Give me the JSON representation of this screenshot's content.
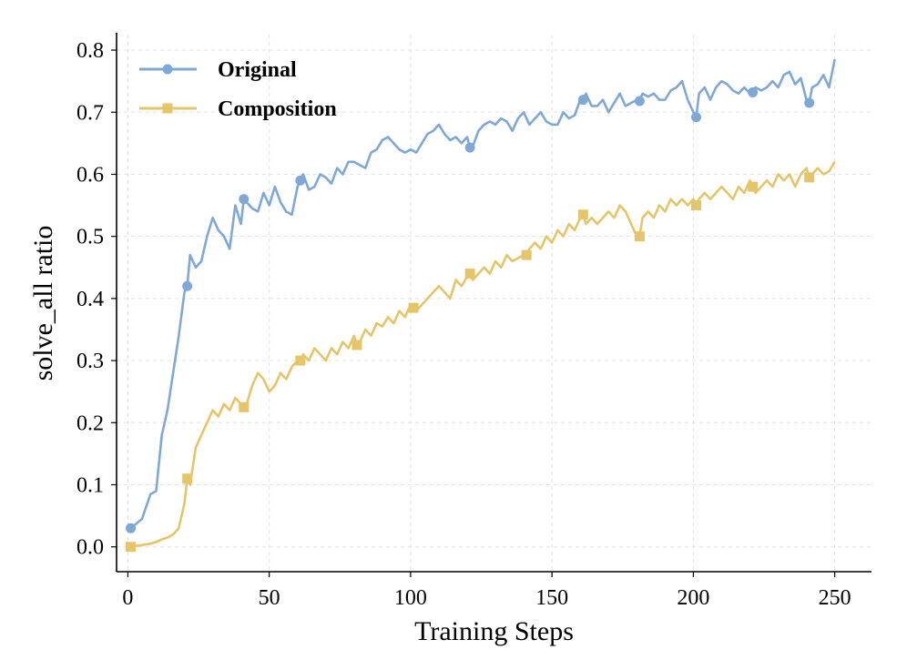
{
  "chart_data": {
    "type": "line",
    "xlabel": "Training Steps",
    "ylabel": "solve_all ratio",
    "xlim": [
      -4,
      263
    ],
    "ylim": [
      -0.04,
      0.825
    ],
    "x_ticks": [
      0,
      50,
      100,
      150,
      200,
      250
    ],
    "x_tick_labels": [
      "0",
      "50",
      "100",
      "150",
      "200",
      "250"
    ],
    "y_ticks": [
      0.0,
      0.1,
      0.2,
      0.3,
      0.4,
      0.5,
      0.6,
      0.7,
      0.8
    ],
    "y_tick_labels": [
      "0.0",
      "0.1",
      "0.2",
      "0.3",
      "0.4",
      "0.5",
      "0.6",
      "0.7",
      "0.8"
    ],
    "grid": true,
    "legend_position": "top-left",
    "marker_every": 20,
    "series": [
      {
        "name": "Original",
        "color": "#7fa8d6",
        "marker": "circle",
        "x": [
          1,
          5,
          8,
          10,
          12,
          14,
          16,
          18,
          20,
          21,
          22,
          24,
          26,
          28,
          30,
          32,
          34,
          36,
          38,
          40,
          41,
          42,
          44,
          46,
          48,
          50,
          52,
          54,
          56,
          58,
          60,
          61,
          62,
          64,
          66,
          68,
          70,
          72,
          74,
          76,
          78,
          80,
          82,
          84,
          86,
          88,
          90,
          92,
          94,
          96,
          98,
          100,
          102,
          104,
          106,
          108,
          110,
          112,
          114,
          116,
          118,
          120,
          121,
          122,
          124,
          126,
          128,
          130,
          132,
          134,
          136,
          138,
          140,
          142,
          144,
          146,
          148,
          150,
          152,
          154,
          156,
          158,
          160,
          161,
          162,
          164,
          166,
          168,
          170,
          172,
          174,
          176,
          178,
          180,
          181,
          182,
          184,
          186,
          188,
          190,
          192,
          194,
          196,
          198,
          200,
          201,
          202,
          204,
          206,
          208,
          210,
          212,
          214,
          216,
          218,
          220,
          221,
          222,
          224,
          226,
          228,
          230,
          232,
          234,
          236,
          238,
          240,
          241,
          242,
          244,
          246,
          248,
          250
        ],
        "values": [
          0.03,
          0.045,
          0.085,
          0.09,
          0.18,
          0.22,
          0.28,
          0.34,
          0.41,
          0.42,
          0.47,
          0.45,
          0.46,
          0.5,
          0.53,
          0.51,
          0.5,
          0.48,
          0.55,
          0.52,
          0.56,
          0.555,
          0.545,
          0.54,
          0.57,
          0.55,
          0.58,
          0.555,
          0.54,
          0.535,
          0.58,
          0.59,
          0.6,
          0.575,
          0.58,
          0.6,
          0.595,
          0.585,
          0.61,
          0.6,
          0.62,
          0.62,
          0.615,
          0.61,
          0.635,
          0.64,
          0.655,
          0.66,
          0.65,
          0.64,
          0.635,
          0.64,
          0.635,
          0.65,
          0.665,
          0.67,
          0.68,
          0.665,
          0.655,
          0.66,
          0.65,
          0.66,
          0.643,
          0.645,
          0.67,
          0.68,
          0.685,
          0.68,
          0.69,
          0.685,
          0.67,
          0.69,
          0.7,
          0.68,
          0.69,
          0.7,
          0.685,
          0.68,
          0.68,
          0.7,
          0.69,
          0.695,
          0.72,
          0.72,
          0.73,
          0.71,
          0.71,
          0.72,
          0.7,
          0.715,
          0.73,
          0.71,
          0.715,
          0.72,
          0.718,
          0.73,
          0.725,
          0.73,
          0.72,
          0.72,
          0.735,
          0.74,
          0.75,
          0.72,
          0.7,
          0.692,
          0.73,
          0.74,
          0.72,
          0.74,
          0.75,
          0.745,
          0.735,
          0.73,
          0.74,
          0.73,
          0.732,
          0.74,
          0.735,
          0.74,
          0.75,
          0.74,
          0.76,
          0.765,
          0.745,
          0.755,
          0.72,
          0.715,
          0.74,
          0.745,
          0.76,
          0.74,
          0.785
        ]
      },
      {
        "name": "Composition",
        "color": "#e6c56a",
        "marker": "square",
        "x": [
          1,
          5,
          8,
          10,
          12,
          14,
          16,
          18,
          20,
          21,
          22,
          24,
          26,
          28,
          30,
          32,
          34,
          36,
          38,
          40,
          41,
          42,
          44,
          46,
          48,
          50,
          52,
          54,
          56,
          58,
          60,
          61,
          62,
          64,
          66,
          68,
          70,
          72,
          74,
          76,
          78,
          80,
          81,
          82,
          84,
          86,
          88,
          90,
          92,
          94,
          96,
          98,
          100,
          101,
          102,
          104,
          106,
          108,
          110,
          112,
          114,
          116,
          118,
          120,
          121,
          122,
          124,
          126,
          128,
          130,
          132,
          134,
          136,
          138,
          140,
          141,
          142,
          144,
          146,
          148,
          150,
          152,
          154,
          156,
          158,
          160,
          161,
          162,
          164,
          166,
          168,
          170,
          172,
          174,
          176,
          178,
          180,
          181,
          182,
          184,
          186,
          188,
          190,
          192,
          194,
          196,
          198,
          200,
          201,
          202,
          204,
          206,
          208,
          210,
          212,
          214,
          216,
          218,
          220,
          221,
          222,
          224,
          226,
          228,
          230,
          232,
          234,
          236,
          238,
          240,
          241,
          242,
          244,
          246,
          248,
          250
        ],
        "values": [
          0,
          0.003,
          0.005,
          0.008,
          0.012,
          0.015,
          0.02,
          0.03,
          0.07,
          0.11,
          0.1,
          0.16,
          0.18,
          0.2,
          0.22,
          0.21,
          0.23,
          0.22,
          0.24,
          0.23,
          0.225,
          0.23,
          0.26,
          0.28,
          0.27,
          0.25,
          0.26,
          0.28,
          0.27,
          0.29,
          0.3,
          0.3,
          0.31,
          0.3,
          0.32,
          0.31,
          0.3,
          0.32,
          0.31,
          0.33,
          0.32,
          0.34,
          0.325,
          0.33,
          0.35,
          0.34,
          0.36,
          0.355,
          0.37,
          0.36,
          0.38,
          0.37,
          0.39,
          0.385,
          0.38,
          0.39,
          0.4,
          0.41,
          0.42,
          0.41,
          0.4,
          0.43,
          0.42,
          0.435,
          0.44,
          0.43,
          0.44,
          0.45,
          0.44,
          0.46,
          0.45,
          0.47,
          0.46,
          0.465,
          0.47,
          0.47,
          0.48,
          0.49,
          0.48,
          0.5,
          0.49,
          0.51,
          0.5,
          0.52,
          0.51,
          0.53,
          0.535,
          0.52,
          0.53,
          0.52,
          0.53,
          0.54,
          0.53,
          0.55,
          0.54,
          0.52,
          0.5,
          0.5,
          0.53,
          0.54,
          0.53,
          0.55,
          0.54,
          0.56,
          0.55,
          0.56,
          0.55,
          0.56,
          0.55,
          0.56,
          0.57,
          0.56,
          0.57,
          0.58,
          0.57,
          0.56,
          0.58,
          0.57,
          0.59,
          0.58,
          0.57,
          0.58,
          0.59,
          0.58,
          0.6,
          0.59,
          0.6,
          0.58,
          0.6,
          0.61,
          0.595,
          0.6,
          0.61,
          0.6,
          0.605,
          0.62
        ]
      }
    ]
  }
}
